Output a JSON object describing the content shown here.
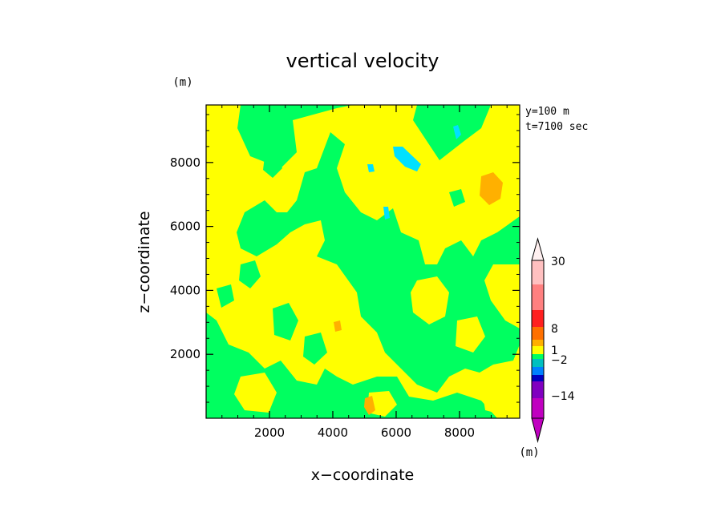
{
  "chart_data": {
    "type": "heatmap",
    "title": "vertical velocity",
    "xlabel": "x−coordinate",
    "ylabel": "z−coordinate",
    "x_unit": "(m)",
    "y_unit": "(m)",
    "xlim": [
      0,
      9900
    ],
    "ylim": [
      0,
      9800
    ],
    "x_ticks": [
      2000,
      4000,
      6000,
      8000
    ],
    "y_ticks": [
      2000,
      4000,
      6000,
      8000
    ],
    "x_tick_labels": [
      "2000",
      "4000",
      "6000",
      "8000"
    ],
    "y_tick_labels": [
      "2000",
      "4000",
      "6000",
      "8000"
    ],
    "info": [
      "y=100  m",
      "t=7100 sec"
    ],
    "colorbar": {
      "unit": "(m)",
      "labels": [
        "30",
        "8",
        "1",
        "−2",
        "−14"
      ],
      "levels_top_to_bottom": [
        {
          "color": "#ffc0c0"
        },
        {
          "color": "#ff8080"
        },
        {
          "color": "#ff2020"
        },
        {
          "color": "#ff7000"
        },
        {
          "color": "#ffb000"
        },
        {
          "color": "#ffff00"
        },
        {
          "color": "#00ff60"
        },
        {
          "color": "#00c0c0"
        },
        {
          "color": "#0080ff"
        },
        {
          "color": "#0000c0"
        },
        {
          "color": "#8000c0"
        },
        {
          "color": "#c000c0"
        }
      ]
    },
    "field_colors": {
      "background": "#00ff60",
      "positive_weak": "#ffff00",
      "positive_moderate": "#ffb000",
      "negative_moderate": "#00e0ff"
    }
  }
}
